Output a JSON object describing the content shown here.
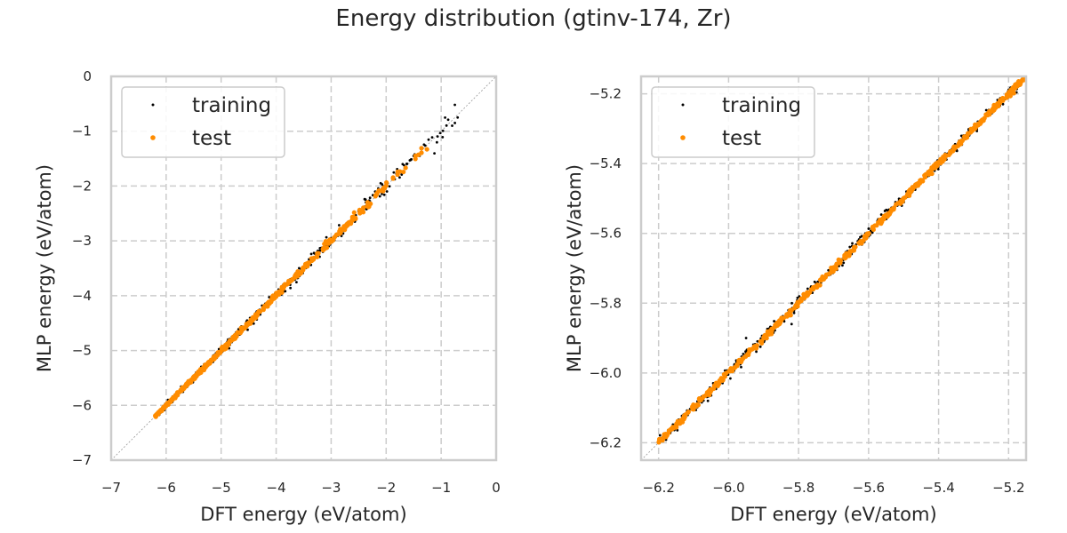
{
  "title": "Energy distribution (gtinv-174, Zr)",
  "colors": {
    "training": "#000000",
    "test": "#ff8c00",
    "grid": "#cccccc",
    "frame": "#cccccc",
    "diagonal": "#999999"
  },
  "chart_data": [
    {
      "type": "scatter",
      "xlabel": "DFT energy (eV/atom)",
      "ylabel": "MLP energy (eV/atom)",
      "xlim": [
        -7,
        0
      ],
      "ylim": [
        -7,
        0
      ],
      "xticks": [
        -7,
        -6,
        -5,
        -4,
        -3,
        -2,
        -1,
        0
      ],
      "yticks": [
        -7,
        -6,
        -5,
        -4,
        -3,
        -2,
        -1,
        0
      ],
      "xtick_labels": [
        "−7",
        "−6",
        "−5",
        "−4",
        "−3",
        "−2",
        "−1",
        "0"
      ],
      "ytick_labels": [
        "−7",
        "−6",
        "−5",
        "−4",
        "−3",
        "−2",
        "−1",
        "0"
      ],
      "grid": true,
      "legend": "upper-left",
      "diagonal": true,
      "series": [
        {
          "name": "training",
          "x_range": [
            -6.2,
            -0.65
          ],
          "scatter_spread": 0.02,
          "outliers": [
            [
              -0.7,
              -0.75
            ],
            [
              -0.75,
              -0.85
            ],
            [
              -0.8,
              -0.9
            ],
            [
              -1.5,
              -1.45
            ],
            [
              -1.7,
              -1.6
            ],
            [
              -2.2,
              -2.1
            ],
            [
              -3.0,
              -2.95
            ]
          ]
        },
        {
          "name": "test",
          "x_range": [
            -6.2,
            -1.1
          ],
          "scatter_spread": 0.01,
          "outliers": []
        }
      ]
    },
    {
      "type": "scatter",
      "xlabel": "DFT energy (eV/atom)",
      "ylabel": "MLP energy (eV/atom)",
      "xlim": [
        -6.25,
        -5.15
      ],
      "ylim": [
        -6.25,
        -5.15
      ],
      "xticks": [
        -6.2,
        -6.0,
        -5.8,
        -5.6,
        -5.4,
        -5.2
      ],
      "yticks": [
        -6.2,
        -6.0,
        -5.8,
        -5.6,
        -5.4,
        -5.2
      ],
      "xtick_labels": [
        "−6.2",
        "−6.0",
        "−5.8",
        "−5.6",
        "−5.4",
        "−5.2"
      ],
      "ytick_labels": [
        "−6.2",
        "−6.0",
        "−5.8",
        "−5.6",
        "−5.4",
        "−5.2"
      ],
      "grid": true,
      "legend": "upper-left",
      "diagonal": true,
      "series": [
        {
          "name": "training",
          "x_range": [
            -6.2,
            -5.15
          ],
          "scatter_spread": 0.008,
          "outliers": [
            [
              -5.82,
              -5.86
            ],
            [
              -5.95,
              -5.9
            ]
          ]
        },
        {
          "name": "test",
          "x_range": [
            -6.2,
            -5.15
          ],
          "scatter_spread": 0.004,
          "outliers": []
        }
      ]
    }
  ]
}
